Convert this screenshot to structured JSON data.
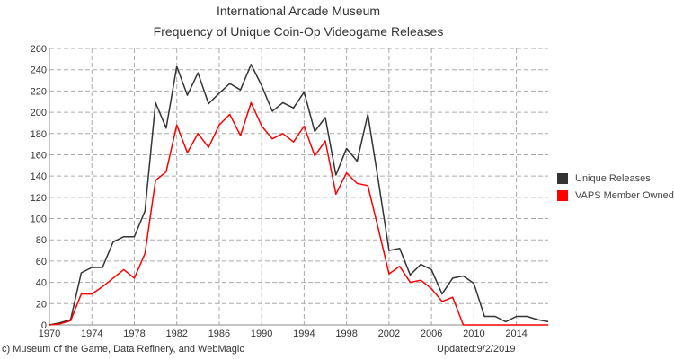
{
  "chart_data": {
    "type": "line",
    "title": "International Arcade Museum",
    "subtitle": "Frequency of Unique Coin-Op Videogame Releases",
    "xlabel": "",
    "ylabel": "",
    "xlim": [
      1970,
      2017
    ],
    "ylim": [
      0,
      260
    ],
    "y_ticks": [
      0,
      20,
      40,
      60,
      80,
      100,
      120,
      140,
      160,
      180,
      200,
      220,
      240,
      260
    ],
    "x_ticks": [
      1970,
      1974,
      1978,
      1982,
      1986,
      1990,
      1994,
      1998,
      2002,
      2006,
      2010,
      2014
    ],
    "grid": true,
    "legend_position": "right",
    "x": [
      1970,
      1971,
      1972,
      1973,
      1974,
      1975,
      1976,
      1977,
      1978,
      1979,
      1980,
      1981,
      1982,
      1983,
      1984,
      1985,
      1986,
      1987,
      1988,
      1989,
      1990,
      1991,
      1992,
      1993,
      1994,
      1995,
      1996,
      1997,
      1998,
      1999,
      2000,
      2001,
      2002,
      2003,
      2004,
      2005,
      2006,
      2007,
      2008,
      2009,
      2010,
      2011,
      2012,
      2013,
      2014,
      2015,
      2016,
      2017
    ],
    "series": [
      {
        "name": "Unique Releases",
        "color": "#333333",
        "values": [
          0,
          2,
          5,
          49,
          54,
          54,
          78,
          83,
          83,
          107,
          209,
          185,
          243,
          216,
          237,
          208,
          218,
          227,
          221,
          245,
          225,
          201,
          209,
          204,
          219,
          182,
          195,
          141,
          166,
          154,
          198,
          135,
          70,
          72,
          47,
          57,
          52,
          29,
          44,
          46,
          39,
          8,
          8,
          3,
          8,
          8,
          5,
          3
        ]
      },
      {
        "name": "VAPS Member Owned",
        "color": "#ff0000",
        "values": [
          0,
          1,
          4,
          29,
          29,
          36,
          44,
          52,
          44,
          67,
          136,
          144,
          188,
          162,
          180,
          167,
          188,
          198,
          178,
          209,
          187,
          175,
          180,
          172,
          187,
          159,
          173,
          123,
          143,
          133,
          131,
          90,
          48,
          55,
          40,
          42,
          34,
          22,
          26,
          0,
          0,
          0,
          0,
          0,
          0,
          0,
          0,
          0
        ]
      }
    ]
  },
  "footer": {
    "credit": "c) Museum of the Game, Data Refinery, and WebMagic",
    "updated": "Updated:9/2/2019"
  }
}
